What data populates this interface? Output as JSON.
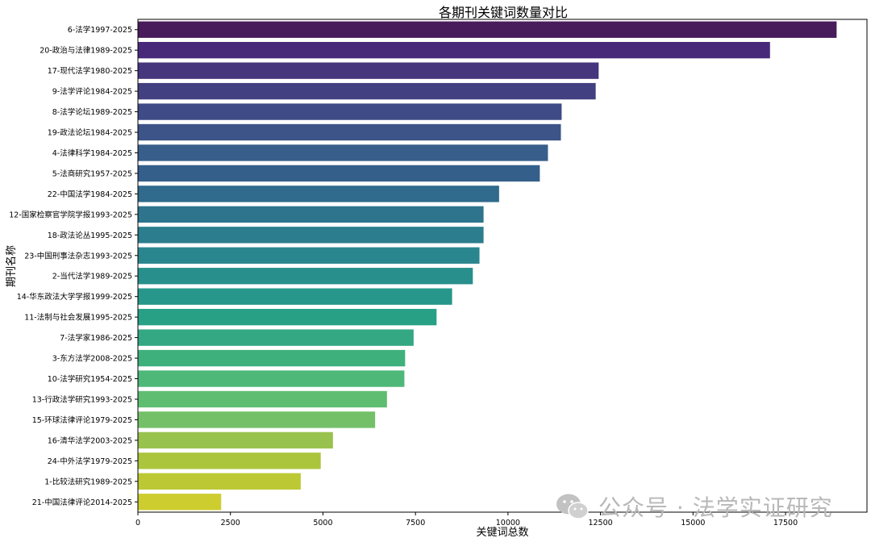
{
  "chart_data": {
    "type": "bar",
    "orientation": "horizontal",
    "title": "各期刊关键词数量对比",
    "xlabel": "关键词总数",
    "ylabel": "期刊名称",
    "xlim": [
      0,
      19700
    ],
    "xticks": [
      0,
      2500,
      5000,
      7500,
      10000,
      12500,
      15000,
      17500
    ],
    "grid": false,
    "legend": "none",
    "palette": "viridis",
    "categories": [
      "6-法学1997-2025",
      "20-政治与法律1989-2025",
      "17-现代法学1980-2025",
      "9-法学评论1984-2025",
      "8-法学论坛1989-2025",
      "19-政法论坛1984-2025",
      "4-法律科学1984-2025",
      "5-法商研究1957-2025",
      "22-中国法学1984-2025",
      "12-国家检察官学院学报1993-2025",
      "18-政法论丛1995-2025",
      "23-中国刑事法杂志1993-2025",
      "2-当代法学1989-2025",
      "14-华东政法大学学报1999-2025",
      "11-法制与社会发展1995-2025",
      "7-法学家1986-2025",
      "3-东方法学2008-2025",
      "10-法学研究1954-2025",
      "13-行政法学研究1993-2025",
      "15-环球法律评论1979-2025",
      "16-清华法学2003-2025",
      "24-中外法学1979-2025",
      "1-比较法研究1989-2025",
      "21-中国法律评论2014-2025"
    ],
    "values": [
      18880,
      17080,
      12450,
      12370,
      11450,
      11430,
      11080,
      10860,
      9760,
      9340,
      9340,
      9230,
      9050,
      8490,
      8070,
      7450,
      7220,
      7200,
      6730,
      6410,
      5270,
      4940,
      4400,
      2250
    ],
    "colors": [
      "#481b5b",
      "#482979",
      "#45367d",
      "#434081",
      "#3f4b86",
      "#3c5488",
      "#385f8b",
      "#355f8b",
      "#306a8c",
      "#2e748d",
      "#2c7d8e",
      "#2a868e",
      "#288f8c",
      "#26978a",
      "#27a086",
      "#33a882",
      "#3eb07c",
      "#4db878",
      "#5fbd71",
      "#74c069",
      "#98c24e",
      "#abc53d",
      "#bcc934",
      "#cdcd30"
    ]
  },
  "watermark": {
    "icon": "wechat-icon",
    "text": "公众号 · 法学实证研究"
  }
}
